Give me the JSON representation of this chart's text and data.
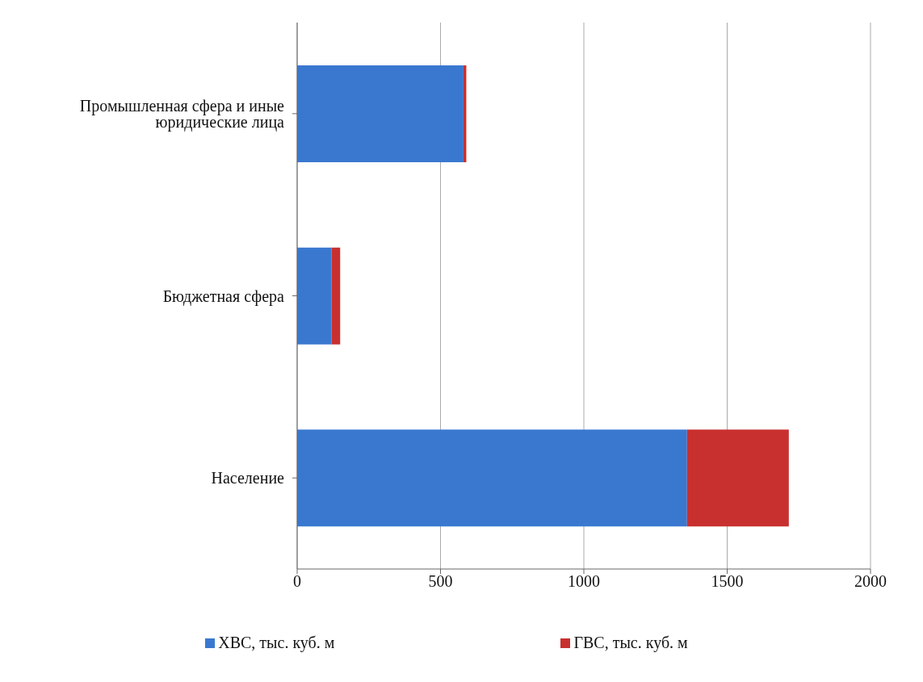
{
  "chart_data": {
    "type": "bar",
    "orientation": "horizontal",
    "stacked": true,
    "categories": [
      "Промышленная сфера и иные юридические лица",
      "Бюджетная сфера",
      "Население"
    ],
    "series": [
      {
        "name": "ХВС, тыс. куб. м",
        "color": "#3a78d0",
        "values": [
          580,
          120,
          1360
        ]
      },
      {
        "name": "ГВС, тыс. куб. м",
        "color": "#c8302f",
        "values": [
          10,
          30,
          355
        ]
      }
    ],
    "xlim": [
      0,
      2000
    ],
    "xticks": [
      0,
      500,
      1000,
      1500,
      2000
    ],
    "grid": "x",
    "legend": "bottom"
  }
}
